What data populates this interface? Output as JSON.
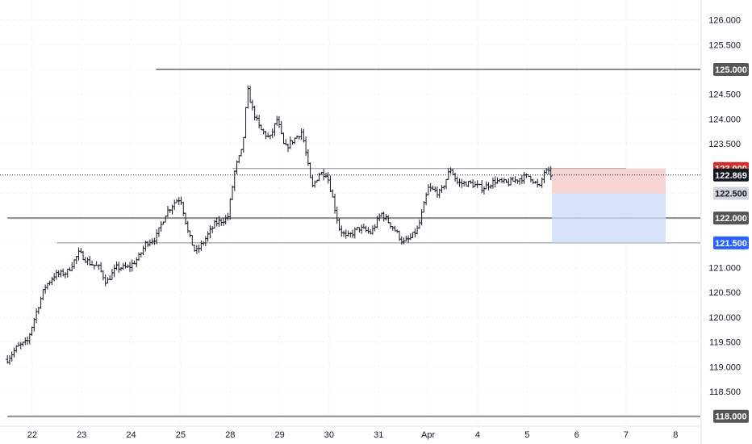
{
  "chart_data": {
    "type": "ohlc",
    "y_axis": {
      "range": [
        117.8,
        126.4
      ],
      "ticks": [
        "126.000",
        "125.500",
        "125.000",
        "124.500",
        "124.000",
        "123.500",
        "123.000",
        "122.500",
        "122.000",
        "121.500",
        "121.000",
        "120.500",
        "120.000",
        "119.500",
        "119.000",
        "118.500",
        "118.000"
      ],
      "highlighted": [
        {
          "value": 125.0,
          "label": "125.000",
          "bg": "#555555",
          "fg": "#ffffff"
        },
        {
          "value": 123.0,
          "label": "123.000",
          "bg": "#d32f2f",
          "fg": "#ffffff"
        },
        {
          "value": 122.869,
          "label": "122.869",
          "bg": "#131722",
          "fg": "#ffffff"
        },
        {
          "value": 122.5,
          "label": "122.500",
          "bg": "#d1d4dc",
          "fg": "#131722"
        },
        {
          "value": 122.0,
          "label": "122.000",
          "bg": "#555555",
          "fg": "#ffffff"
        },
        {
          "value": 121.5,
          "label": "121.500",
          "bg": "#2962ff",
          "fg": "#ffffff"
        },
        {
          "value": 118.0,
          "label": "118.000",
          "bg": "#555555",
          "fg": "#ffffff"
        }
      ]
    },
    "x_axis": {
      "ticks": [
        {
          "label": "22",
          "i": 0.5
        },
        {
          "label": "23",
          "i": 1.5
        },
        {
          "label": "24",
          "i": 2.5
        },
        {
          "label": "25",
          "i": 3.5
        },
        {
          "label": "28",
          "i": 4.5
        },
        {
          "label": "29",
          "i": 5.5
        },
        {
          "label": "30",
          "i": 6.5
        },
        {
          "label": "31",
          "i": 7.5
        },
        {
          "label": "Apr",
          "i": 8.5
        },
        {
          "label": "4",
          "i": 9.5
        },
        {
          "label": "5",
          "i": 10.5
        },
        {
          "label": "6",
          "i": 11.5
        },
        {
          "label": "7",
          "i": 12.5
        },
        {
          "label": "8",
          "i": 13.5
        }
      ]
    },
    "price_path": [
      [
        0.0,
        119.15
      ],
      [
        0.2,
        119.4
      ],
      [
        0.4,
        119.5
      ],
      [
        0.55,
        120.0
      ],
      [
        0.75,
        120.6
      ],
      [
        0.95,
        120.85
      ],
      [
        1.2,
        120.9
      ],
      [
        1.45,
        121.3
      ],
      [
        1.65,
        121.1
      ],
      [
        1.85,
        121.0
      ],
      [
        2.0,
        120.7
      ],
      [
        2.2,
        121.0
      ],
      [
        2.45,
        121.0
      ],
      [
        2.65,
        121.2
      ],
      [
        2.8,
        121.5
      ],
      [
        3.0,
        121.6
      ],
      [
        3.2,
        122.1
      ],
      [
        3.4,
        122.35
      ],
      [
        3.5,
        122.4
      ],
      [
        3.65,
        121.7
      ],
      [
        3.8,
        121.3
      ],
      [
        3.95,
        121.5
      ],
      [
        4.2,
        121.9
      ],
      [
        4.45,
        122.0
      ],
      [
        4.6,
        123.0
      ],
      [
        4.75,
        123.4
      ],
      [
        4.85,
        124.6
      ],
      [
        4.95,
        124.2
      ],
      [
        5.1,
        123.8
      ],
      [
        5.3,
        123.6
      ],
      [
        5.45,
        124.0
      ],
      [
        5.6,
        123.4
      ],
      [
        5.8,
        123.6
      ],
      [
        5.95,
        123.75
      ],
      [
        6.05,
        123.2
      ],
      [
        6.15,
        122.6
      ],
      [
        6.3,
        122.9
      ],
      [
        6.45,
        122.9
      ],
      [
        6.55,
        122.5
      ],
      [
        6.7,
        121.8
      ],
      [
        6.85,
        121.6
      ],
      [
        7.1,
        121.8
      ],
      [
        7.35,
        121.7
      ],
      [
        7.55,
        122.1
      ],
      [
        7.8,
        121.8
      ],
      [
        8.0,
        121.5
      ],
      [
        8.15,
        121.6
      ],
      [
        8.3,
        121.8
      ],
      [
        8.5,
        122.6
      ],
      [
        8.75,
        122.5
      ],
      [
        8.95,
        123.0
      ],
      [
        9.1,
        122.7
      ],
      [
        9.35,
        122.7
      ],
      [
        9.6,
        122.6
      ],
      [
        9.85,
        122.75
      ],
      [
        10.1,
        122.7
      ],
      [
        10.35,
        122.8
      ],
      [
        10.55,
        122.85
      ],
      [
        10.75,
        122.6
      ],
      [
        10.85,
        122.95
      ],
      [
        11.0,
        122.87
      ]
    ],
    "horizontal_lines": [
      {
        "y": 125.0,
        "x_start": 3.0,
        "x_end": 14.0,
        "color": "#8c8c8c",
        "width": 2
      },
      {
        "y": 123.0,
        "x_start": 4.55,
        "x_end": 12.5,
        "color": "#8c8c8c",
        "width": 1
      },
      {
        "y": 122.0,
        "x_start": 0.0,
        "x_end": 14.0,
        "color": "#8c8c8c",
        "width": 2
      },
      {
        "y": 121.5,
        "x_start": 1.0,
        "x_end": 14.0,
        "color": "#8c8c8c",
        "width": 1
      },
      {
        "y": 118.0,
        "x_start": 0.0,
        "x_end": 14.0,
        "color": "#8c8c8c",
        "width": 2
      }
    ],
    "last_price_line": {
      "y": 122.869,
      "color": "#131722"
    },
    "position_box": {
      "x_start": 11.0,
      "x_end": 13.3,
      "stop": 123.0,
      "entry": 122.5,
      "target": 121.5,
      "stop_color": "#f7c6c6",
      "target_color": "#c9d9f7"
    },
    "grid": true
  }
}
